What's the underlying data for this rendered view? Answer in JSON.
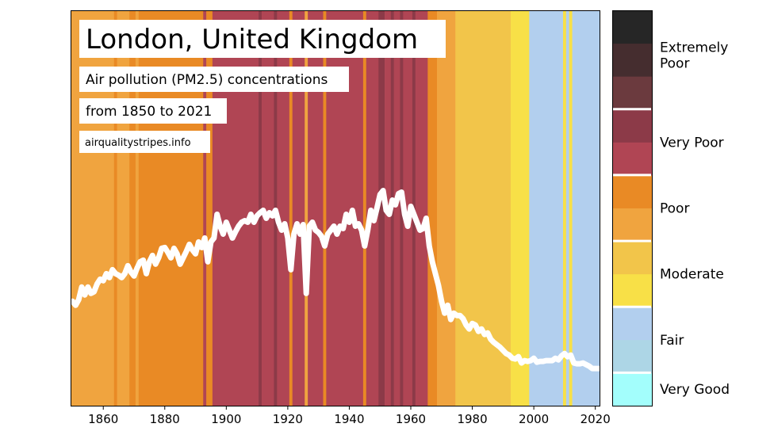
{
  "title": "London, United Kingdom",
  "subtitle_line1": "Air pollution (PM2.5) concentrations",
  "subtitle_line2": "from 1850 to 2021",
  "source": "airqualitystripes.info",
  "chart_data": {
    "type": "line",
    "description_of_stripes": "",
    "x_range": [
      1850,
      2022
    ],
    "ylim": [
      0,
      100
    ],
    "grid": false,
    "y_axis_shown": false,
    "x_ticks": [
      1860,
      1880,
      1900,
      1920,
      1940,
      1960,
      1980,
      2000,
      2020
    ],
    "line_color": "#ffffff",
    "start_year": 1850,
    "values": [
      26.4,
      25.4,
      26.8,
      30,
      28,
      30,
      28.4,
      28.8,
      30.8,
      32,
      31.6,
      33.4,
      32.4,
      34.4,
      33.4,
      33,
      32.4,
      33.4,
      35.4,
      33.8,
      32.8,
      34.8,
      36.4,
      36.8,
      33.4,
      36.4,
      38,
      35.8,
      37.4,
      39.8,
      40,
      38.8,
      37.4,
      39.8,
      38.4,
      35.8,
      37.4,
      39,
      40.8,
      39.4,
      38.4,
      41.4,
      40,
      42.4,
      36.4,
      41.4,
      42.4,
      48.4,
      45.4,
      43.4,
      46.4,
      44.4,
      42.4,
      44,
      45.4,
      46.4,
      46.8,
      46.4,
      48.4,
      46.4,
      48,
      48.8,
      49.4,
      47.4,
      48.8,
      48,
      49.4,
      46.4,
      44.4,
      46,
      42.4,
      34.4,
      43.4,
      46,
      43.4,
      45.8,
      28.4,
      45.4,
      46.4,
      44.4,
      43.8,
      42.8,
      40.4,
      43.4,
      44.4,
      45.4,
      43.4,
      45.4,
      44.8,
      48.4,
      46.4,
      49.4,
      45.4,
      46,
      44.4,
      40.4,
      44.4,
      49.4,
      46.8,
      50,
      53.4,
      54.4,
      49.4,
      48.4,
      52,
      50.8,
      53.6,
      54,
      48.4,
      45.4,
      50.4,
      48.4,
      46.4,
      44.4,
      44.8,
      47.4,
      40.4,
      36.4,
      33.4,
      30.4,
      26.4,
      23.4,
      25.4,
      21.8,
      23.4,
      22.8,
      22.8,
      22,
      20.4,
      19.4,
      20.8,
      20.4,
      18.8,
      19.4,
      18,
      18.4,
      16.8,
      16,
      15.4,
      14.8,
      14,
      13.2,
      12.8,
      12,
      11.8,
      12.4,
      10.8,
      11.4,
      11.2,
      11.4,
      12,
      11,
      11.2,
      11.2,
      11.4,
      11.4,
      11.4,
      12,
      11.6,
      12.6,
      13.2,
      12.4,
      12.8,
      10.8,
      10.6,
      10.6,
      10.8,
      10.4,
      10,
      9.4,
      9.4,
      9.4
    ],
    "stripe_runs": [
      [
        1850,
        1863,
        5
      ],
      [
        1864,
        1864,
        6
      ],
      [
        1865,
        1868,
        5
      ],
      [
        1869,
        1870,
        6
      ],
      [
        1871,
        1871,
        5
      ],
      [
        1872,
        1892,
        6
      ],
      [
        1893,
        1893,
        7
      ],
      [
        1894,
        1895,
        6
      ],
      [
        1896,
        1910,
        7
      ],
      [
        1911,
        1911,
        8
      ],
      [
        1912,
        1915,
        7
      ],
      [
        1916,
        1916,
        8
      ],
      [
        1917,
        1920,
        7
      ],
      [
        1921,
        1921,
        6
      ],
      [
        1922,
        1925,
        7
      ],
      [
        1926,
        1926,
        5
      ],
      [
        1927,
        1931,
        7
      ],
      [
        1932,
        1932,
        6
      ],
      [
        1933,
        1944,
        7
      ],
      [
        1945,
        1945,
        6
      ],
      [
        1946,
        1949,
        7
      ],
      [
        1950,
        1951,
        8
      ],
      [
        1952,
        1953,
        7
      ],
      [
        1954,
        1954,
        8
      ],
      [
        1955,
        1956,
        7
      ],
      [
        1957,
        1957,
        8
      ],
      [
        1958,
        1960,
        7
      ],
      [
        1961,
        1961,
        8
      ],
      [
        1962,
        1965,
        7
      ],
      [
        1966,
        1968,
        6
      ],
      [
        1969,
        1974,
        5
      ],
      [
        1975,
        1992,
        4
      ],
      [
        1993,
        1998,
        3
      ],
      [
        1999,
        2009,
        2
      ],
      [
        2010,
        2010,
        3
      ],
      [
        2011,
        2011,
        2
      ],
      [
        2012,
        2012,
        3
      ],
      [
        2013,
        2021,
        2
      ]
    ],
    "color_levels": [
      "#a3fefc",
      "#add6e6",
      "#b2cfee",
      "#f8e047",
      "#f2c54a",
      "#f0a43f",
      "#e98a25",
      "#b04554",
      "#8c3a48",
      "#6b3a3e",
      "#452d2f",
      "#262626"
    ],
    "legend": [
      {
        "label": "Very Good",
        "levels": [
          0
        ]
      },
      {
        "label": "Fair",
        "levels": [
          1,
          2
        ]
      },
      {
        "label": "Moderate",
        "levels": [
          3,
          4
        ]
      },
      {
        "label": "Poor",
        "levels": [
          5,
          6
        ]
      },
      {
        "label": "Very Poor",
        "levels": [
          7,
          8
        ]
      },
      {
        "label": "Extremely Poor",
        "label_lines": [
          "Extremely",
          "Poor"
        ],
        "levels": [
          9,
          10,
          11
        ]
      }
    ],
    "legend_placement": "right"
  }
}
